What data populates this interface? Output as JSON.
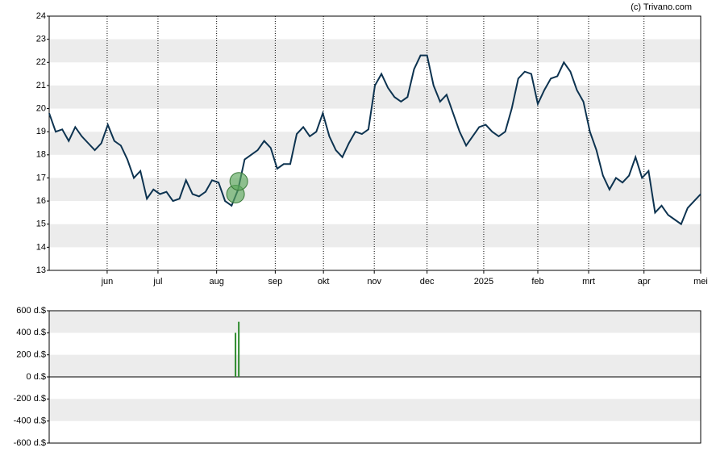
{
  "chart_data": [
    {
      "type": "line",
      "credit": "(c) Trivano.com",
      "color": "#0d3350",
      "xlim": [
        0,
        100
      ],
      "ylim": [
        13,
        24
      ],
      "xticks": [
        {
          "value": 8.9,
          "label": "jun"
        },
        {
          "value": 16.7,
          "label": "jul"
        },
        {
          "value": 25.7,
          "label": "aug"
        },
        {
          "value": 34.7,
          "label": "sep"
        },
        {
          "value": 42.1,
          "label": "okt"
        },
        {
          "value": 49.9,
          "label": "nov"
        },
        {
          "value": 58.0,
          "label": "dec"
        },
        {
          "value": 66.7,
          "label": "2025"
        },
        {
          "value": 75.0,
          "label": "feb"
        },
        {
          "value": 82.8,
          "label": "mrt"
        },
        {
          "value": 91.3,
          "label": "apr"
        },
        {
          "value": 100,
          "label": "mei"
        }
      ],
      "yticks": [
        13,
        14,
        15,
        16,
        17,
        18,
        19,
        20,
        21,
        22,
        23,
        24
      ],
      "x": [
        0,
        1,
        2,
        3,
        4,
        5,
        6,
        7,
        8,
        9,
        10,
        11,
        12,
        13,
        14,
        15,
        16,
        17,
        18,
        19,
        20,
        21,
        22,
        23,
        24,
        25,
        26,
        27,
        28,
        29,
        30,
        31,
        32,
        33,
        34,
        35,
        36,
        37,
        38,
        39,
        40,
        41,
        42,
        43,
        44,
        45,
        46,
        47,
        48,
        49,
        50,
        51,
        52,
        53,
        54,
        55,
        56,
        57,
        58,
        59,
        60,
        61,
        62,
        63,
        64,
        65,
        66,
        67,
        68,
        69,
        70,
        71,
        72,
        73,
        74,
        75,
        76,
        77,
        78,
        79,
        80,
        81,
        82,
        83,
        84,
        85,
        86,
        87,
        88,
        89,
        90,
        91,
        92,
        93,
        94,
        95,
        96,
        97,
        98,
        99,
        100
      ],
      "values": [
        19.8,
        19.0,
        19.1,
        18.6,
        19.2,
        18.8,
        18.5,
        18.2,
        18.5,
        19.3,
        18.6,
        18.4,
        17.8,
        17.0,
        17.3,
        16.1,
        16.5,
        16.3,
        16.4,
        16.0,
        16.1,
        16.9,
        16.3,
        16.2,
        16.4,
        16.9,
        16.8,
        16.0,
        15.8,
        16.5,
        17.8,
        18.0,
        18.2,
        18.6,
        18.3,
        17.4,
        17.6,
        17.6,
        18.9,
        19.2,
        18.8,
        19.0,
        19.8,
        18.8,
        18.2,
        17.9,
        18.5,
        19.0,
        18.9,
        19.1,
        21.0,
        21.5,
        20.9,
        20.5,
        20.3,
        20.5,
        21.7,
        22.3,
        22.3,
        21.0,
        20.3,
        20.6,
        19.8,
        19.0,
        18.4,
        18.8,
        19.2,
        19.3,
        19.0,
        18.8,
        19.0,
        20.0,
        21.3,
        21.6,
        21.5,
        20.2,
        20.8,
        21.3,
        21.4,
        22.0,
        21.6,
        20.8,
        20.3,
        19.0,
        18.2,
        17.1,
        16.5,
        17.0,
        16.8,
        17.1,
        17.9,
        17.0,
        17.3,
        15.5,
        15.8,
        15.4,
        15.2,
        15.0,
        15.7,
        16.0,
        16.3
      ],
      "markers": {
        "color": "#5aa85a",
        "x": [
          28.6,
          29.1
        ],
        "values": [
          16.3,
          16.85
        ]
      },
      "grid": true
    },
    {
      "type": "bar",
      "color": "#2e8b2e",
      "xlim": [
        0,
        100
      ],
      "ylim": [
        -600,
        600
      ],
      "yticks": [
        {
          "value": 600,
          "label": "600 d.$"
        },
        {
          "value": 400,
          "label": "400 d.$"
        },
        {
          "value": 200,
          "label": "200 d.$"
        },
        {
          "value": 0,
          "label": "0 d.$"
        },
        {
          "value": -200,
          "label": "-200 d.$"
        },
        {
          "value": -400,
          "label": "-400 d.$"
        },
        {
          "value": -600,
          "label": "-600 d.$"
        }
      ],
      "x": [
        28.6,
        29.1
      ],
      "values": [
        400,
        500
      ]
    }
  ]
}
